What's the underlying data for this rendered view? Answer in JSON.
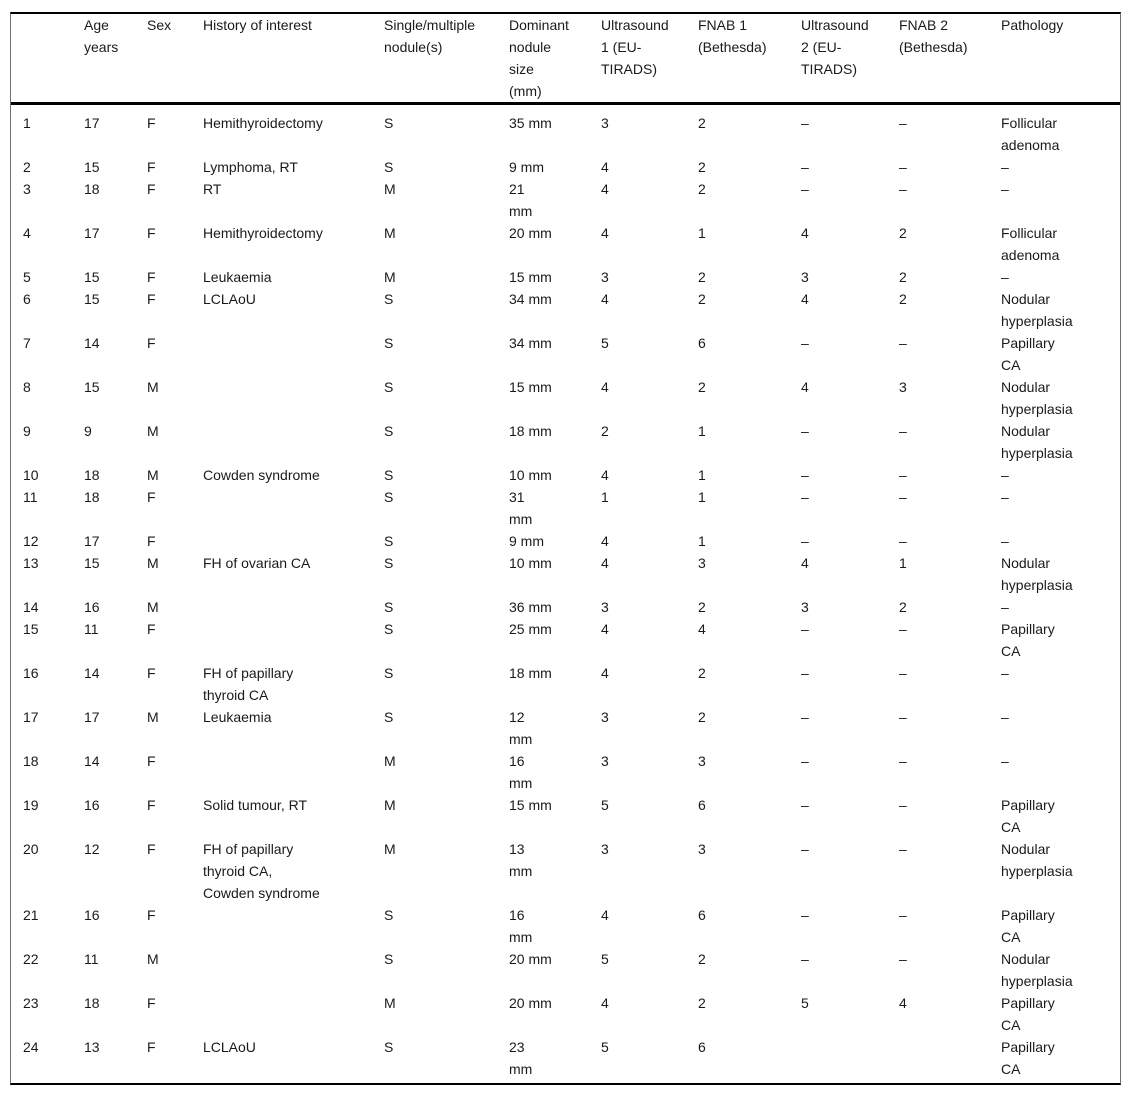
{
  "table": {
    "missing_value_symbol": "–",
    "columns": [
      {
        "key": "row_number",
        "label": ""
      },
      {
        "key": "age",
        "label": "Age\nyears"
      },
      {
        "key": "sex",
        "label": "Sex"
      },
      {
        "key": "history",
        "label": "History of interest"
      },
      {
        "key": "nodules",
        "label": "Single/multiple\nnodule(s)"
      },
      {
        "key": "size",
        "label": "Dominant\nnodule\nsize\n(mm)"
      },
      {
        "key": "us1",
        "label": "Ultrasound\n1 (EU-\nTIRADS)"
      },
      {
        "key": "fnab1",
        "label": "FNAB 1\n(Bethesda)"
      },
      {
        "key": "us2",
        "label": "Ultrasound\n2 (EU-\nTIRADS)"
      },
      {
        "key": "fnab2",
        "label": "FNAB 2\n(Bethesda)"
      },
      {
        "key": "pathology",
        "label": "Pathology"
      }
    ],
    "rows": [
      [
        "1",
        "17",
        "F",
        "Hemithyroidectomy",
        "S",
        "35 mm",
        "3",
        "2",
        "–",
        "–",
        "Follicular\nadenoma"
      ],
      [
        "2",
        "15",
        "F",
        "Lymphoma, RT",
        "S",
        "9 mm",
        "4",
        "2",
        "–",
        "–",
        "–"
      ],
      [
        "3",
        "18",
        "F",
        "RT",
        "M",
        "21\nmm",
        "4",
        "2",
        "–",
        "–",
        "–"
      ],
      [
        "4",
        "17",
        "F",
        "Hemithyroidectomy",
        "M",
        "20 mm",
        "4",
        "1",
        "4",
        "2",
        "Follicular\nadenoma"
      ],
      [
        "5",
        "15",
        "F",
        "Leukaemia",
        "M",
        "15 mm",
        "3",
        "2",
        "3",
        "2",
        "–"
      ],
      [
        "6",
        "15",
        "F",
        "LCLAoU",
        "S",
        "34 mm",
        "4",
        "2",
        "4",
        "2",
        "Nodular\nhyperplasia"
      ],
      [
        "7",
        "14",
        "F",
        "",
        "S",
        "34 mm",
        "5",
        "6",
        "–",
        "–",
        "Papillary\nCA"
      ],
      [
        "8",
        "15",
        "M",
        "",
        "S",
        "15 mm",
        "4",
        "2",
        "4",
        "3",
        "Nodular\nhyperplasia"
      ],
      [
        "9",
        "9",
        "M",
        "",
        "S",
        "18 mm",
        "2",
        "1",
        "–",
        "–",
        "Nodular\nhyperplasia"
      ],
      [
        "10",
        "18",
        "M",
        "Cowden syndrome",
        "S",
        "10 mm",
        "4",
        "1",
        "–",
        "–",
        "–"
      ],
      [
        "11",
        "18",
        "F",
        "",
        "S",
        "31\nmm",
        "1",
        "1",
        "–",
        "–",
        "–"
      ],
      [
        "12",
        "17",
        "F",
        "",
        "S",
        "9 mm",
        "4",
        "1",
        "–",
        "–",
        "–"
      ],
      [
        "13",
        "15",
        "M",
        "FH of ovarian CA",
        "S",
        "10 mm",
        "4",
        "3",
        "4",
        "1",
        "Nodular\nhyperplasia"
      ],
      [
        "14",
        "16",
        "M",
        "",
        "S",
        "36 mm",
        "3",
        "2",
        "3",
        "2",
        "–"
      ],
      [
        "15",
        "11",
        "F",
        "",
        "S",
        "25 mm",
        "4",
        "4",
        "–",
        "–",
        "Papillary\nCA"
      ],
      [
        "16",
        "14",
        "F",
        "FH of papillary\nthyroid CA",
        "S",
        "18 mm",
        "4",
        "2",
        "–",
        "–",
        "–"
      ],
      [
        "17",
        "17",
        "M",
        "Leukaemia",
        "S",
        "12\nmm",
        "3",
        "2",
        "–",
        "–",
        "–"
      ],
      [
        "18",
        "14",
        "F",
        "",
        "M",
        "16\nmm",
        "3",
        "3",
        "–",
        "–",
        "–"
      ],
      [
        "19",
        "16",
        "F",
        "Solid tumour, RT",
        "M",
        "15 mm",
        "5",
        "6",
        "–",
        "–",
        "Papillary\nCA"
      ],
      [
        "20",
        "12",
        "F",
        "FH of papillary\nthyroid CA,\nCowden syndrome",
        "M",
        "13\nmm",
        "3",
        "3",
        "–",
        "–",
        "Nodular\nhyperplasia"
      ],
      [
        "21",
        "16",
        "F",
        "",
        "S",
        "16\nmm",
        "4",
        "6",
        "–",
        "–",
        "Papillary\nCA"
      ],
      [
        "22",
        "11",
        "M",
        "",
        "S",
        "20 mm",
        "5",
        "2",
        "–",
        "–",
        "Nodular\nhyperplasia"
      ],
      [
        "23",
        "18",
        "F",
        "",
        "M",
        "20 mm",
        "4",
        "2",
        "5",
        "4",
        "Papillary\nCA"
      ],
      [
        "24",
        "13",
        "F",
        "LCLAoU",
        "S",
        "23\nmm",
        "5",
        "6",
        "",
        "",
        "Papillary\nCA"
      ]
    ]
  }
}
